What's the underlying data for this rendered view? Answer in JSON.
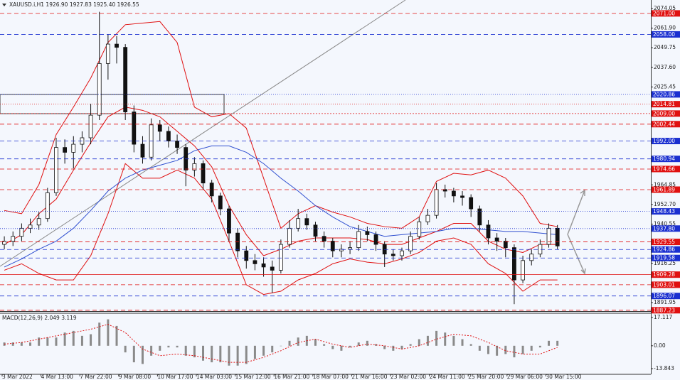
{
  "header": {
    "symbol": "XAUUSD.i,H1 1926.90 1927.83 1925.40 1926.55"
  },
  "chart_data": [
    {
      "type": "candlestick",
      "ylim": [
        1886.7,
        2079.3
      ],
      "yticks": [
        2074.05,
        {
          "value": 2061.9,
          "label": "2061.90"
        },
        2049.75,
        {
          "value": 2037.6,
          "label": "2037.60"
        },
        2025.45,
        1964.85,
        {
          "value": 1952.7,
          "label": "1952.70"
        },
        1940.55,
        1916.25,
        1891.95
      ],
      "ohlc": [
        [
          1928,
          1933,
          1925,
          1930
        ],
        [
          1930,
          1936,
          1927,
          1933
        ],
        [
          1933,
          1941,
          1930,
          1938
        ],
        [
          1938,
          1944,
          1935,
          1940
        ],
        [
          1940,
          1948,
          1937,
          1944
        ],
        [
          1944,
          1963,
          1942,
          1960
        ],
        [
          1960,
          1994,
          1958,
          1988
        ],
        [
          1988,
          1993,
          1978,
          1985
        ],
        [
          1985,
          1995,
          1975,
          1990
        ],
        [
          1990,
          1998,
          1985,
          1994
        ],
        [
          1994,
          2015,
          1990,
          2008
        ],
        [
          2008,
          2072,
          2005,
          2040
        ],
        [
          2040,
          2058,
          2030,
          2052
        ],
        [
          2052,
          2057,
          2040,
          2050
        ],
        [
          2050,
          2052,
          2005,
          2010
        ],
        [
          2010,
          2014,
          1985,
          1990
        ],
        [
          1990,
          1995,
          1978,
          1982
        ],
        [
          1982,
          2006,
          1980,
          2002
        ],
        [
          2002,
          2005,
          1992,
          1998
        ],
        [
          1998,
          2001,
          1988,
          1992
        ],
        [
          1992,
          1996,
          1984,
          1988
        ],
        [
          1988,
          1990,
          1964,
          1974
        ],
        [
          1974,
          1982,
          1970,
          1978
        ],
        [
          1978,
          1980,
          1962,
          1966
        ],
        [
          1966,
          1968,
          1954,
          1958
        ],
        [
          1958,
          1960,
          1946,
          1950
        ],
        [
          1950,
          1952,
          1930,
          1935
        ],
        [
          1935,
          1938,
          1920,
          1924
        ],
        [
          1924,
          1927,
          1913,
          1918
        ],
        [
          1918,
          1922,
          1912,
          1916
        ],
        [
          1916,
          1920,
          1908,
          1914
        ],
        [
          1914,
          1918,
          1898,
          1912
        ],
        [
          1912,
          1931,
          1910,
          1928
        ],
        [
          1928,
          1943,
          1926,
          1938
        ],
        [
          1938,
          1950,
          1936,
          1944
        ],
        [
          1944,
          1947,
          1937,
          1940
        ],
        [
          1940,
          1942,
          1930,
          1933
        ],
        [
          1933,
          1936,
          1926,
          1930
        ],
        [
          1930,
          1932,
          1920,
          1924
        ],
        [
          1924,
          1928,
          1920,
          1925
        ],
        [
          1925,
          1930,
          1922,
          1926
        ],
        [
          1926,
          1940,
          1924,
          1936
        ],
        [
          1936,
          1939,
          1930,
          1934
        ],
        [
          1934,
          1936,
          1924,
          1928
        ],
        [
          1928,
          1930,
          1914,
          1922
        ],
        [
          1922,
          1925,
          1918,
          1921
        ],
        [
          1921,
          1926,
          1918,
          1924
        ],
        [
          1924,
          1936,
          1922,
          1933
        ],
        [
          1933,
          1945,
          1931,
          1942
        ],
        [
          1942,
          1950,
          1940,
          1946
        ],
        [
          1946,
          1966,
          1944,
          1962
        ],
        [
          1962,
          1965,
          1957,
          1961
        ],
        [
          1961,
          1963,
          1954,
          1958
        ],
        [
          1958,
          1961,
          1952,
          1957
        ],
        [
          1957,
          1959,
          1945,
          1950
        ],
        [
          1950,
          1952,
          1936,
          1940
        ],
        [
          1940,
          1943,
          1928,
          1932
        ],
        [
          1932,
          1935,
          1924,
          1930
        ],
        [
          1930,
          1932,
          1920,
          1926
        ],
        [
          1926,
          1928,
          1891,
          1906
        ],
        [
          1906,
          1921,
          1904,
          1918
        ],
        [
          1918,
          1925,
          1915,
          1922
        ],
        [
          1922,
          1931,
          1920,
          1928
        ],
        [
          1928,
          1941,
          1926,
          1938
        ],
        [
          1938,
          1940,
          1925,
          1927
        ]
      ],
      "line_x": [
        0,
        2,
        4,
        6,
        8,
        10,
        12,
        14,
        16,
        18,
        20,
        22,
        24,
        26,
        28,
        30,
        32,
        34,
        36,
        38,
        40,
        42,
        44,
        46,
        48,
        50,
        52,
        54,
        56,
        58,
        60,
        62,
        64
      ],
      "lines": [
        {
          "color": "#e01010",
          "values": [
            1949,
            1947,
            1965,
            1996,
            2013,
            2031,
            2053,
            2064,
            2065,
            2066,
            2053,
            2013,
            2007,
            2009,
            2000,
            1969,
            1938,
            1947,
            1952,
            1948,
            1945,
            1941,
            1939,
            1938,
            1945,
            1967,
            1972,
            1971,
            1974,
            1969,
            1958,
            1941,
            1939
          ]
        },
        {
          "color": "#e01010",
          "values": [
            1912,
            1916,
            1910,
            1906,
            1906,
            1921,
            1947,
            1978,
            1969,
            1969,
            1974,
            1969,
            1956,
            1930,
            1903,
            1897,
            1899,
            1906,
            1910,
            1916,
            1919,
            1917,
            1916,
            1919,
            1923,
            1930,
            1932,
            1928,
            1916,
            1910,
            1899,
            1906,
            1906
          ]
        },
        {
          "color": "#e01010",
          "values": [
            1928,
            1934,
            1947,
            1956,
            1974,
            1991,
            2007,
            2013,
            2011,
            2007,
            1998,
            1989,
            1976,
            1952,
            1934,
            1921,
            1925,
            1930,
            1932,
            1932,
            1932,
            1931,
            1928,
            1928,
            1932,
            1936,
            1941,
            1941,
            1930,
            1925,
            1923,
            1928,
            1928
          ]
        },
        {
          "color": "#3050d0",
          "values": [
            1914,
            1919,
            1925,
            1930,
            1938,
            1949,
            1961,
            1969,
            1974,
            1977,
            1980,
            1986,
            1989,
            1989,
            1985,
            1978,
            1969,
            1961,
            1952,
            1945,
            1939,
            1936,
            1933,
            1934,
            1935,
            1936,
            1938,
            1938,
            1937,
            1936,
            1936,
            1935,
            1934
          ]
        }
      ],
      "levels": [
        {
          "value": 2071,
          "label": "2071.00",
          "color": "#e01010",
          "dash": "6,4"
        },
        {
          "value": 2058,
          "label": "2058.00",
          "color": "#1a2fd0",
          "dash": "6,4"
        },
        {
          "value": 2020.86,
          "label": "2020.86",
          "color": "#1a2fd0",
          "dash": "1,2"
        },
        {
          "value": 2014.81,
          "label": "2014.81",
          "color": "#e01010",
          "dash": "1,2"
        },
        {
          "value": 2009,
          "label": "2009.00",
          "color": "#e01010",
          "dash": "2,2"
        },
        {
          "value": 2002.44,
          "label": "2002.44",
          "color": "#e01010",
          "dash": "6,4"
        },
        {
          "value": 1992,
          "label": "1992.00",
          "color": "#1a2fd0",
          "dash": "6,4"
        },
        {
          "value": 1980.94,
          "label": "1980.94",
          "color": "#1a2fd0",
          "dash": "6,4"
        },
        {
          "value": 1974.66,
          "label": "1974.66",
          "color": "#e01010",
          "dash": "6,4"
        },
        {
          "value": 1961.89,
          "label": "1961.89",
          "color": "#e01010",
          "dash": "6,4"
        },
        {
          "value": 1948.43,
          "label": "1948.43",
          "color": "#1a2fd0",
          "dash": "1,2"
        },
        {
          "value": 1937.8,
          "label": "1937.80",
          "color": "#1a2fd0",
          "dash": "1,2"
        },
        {
          "value": 1929.55,
          "label": "1929.55",
          "color": "#e01010",
          "dash": "6,4"
        },
        {
          "value": 1924.86,
          "label": "1924.86",
          "color": "#1a2fd0",
          "dash": "6,4"
        },
        {
          "value": 1919.58,
          "label": "1919.58",
          "color": "#1a2fd0",
          "dash": "6,4"
        },
        {
          "value": 1909.28,
          "label": "1909.28",
          "color": "#e01010",
          "dash": "none"
        },
        {
          "value": 1903.01,
          "label": "1903.01",
          "color": "#e01010",
          "dash": "6,4"
        },
        {
          "value": 1896.07,
          "label": "1896.07",
          "color": "#1a2fd0",
          "dash": "6,4"
        },
        {
          "value": 1887.23,
          "label": "1887.23",
          "color": "#e01010",
          "dash": "6,4"
        }
      ]
    },
    {
      "type": "bar",
      "title": "MACD(12,26,9) 2.049 3.119",
      "ylim": [
        -17.27,
        19.26
      ],
      "yticks": [
        17.117,
        {
          "value": 0,
          "label": "0.00"
        },
        -13.843
      ],
      "color": "#8a8a8a",
      "values": [
        2,
        2,
        2,
        2,
        5,
        5,
        5,
        8,
        9,
        6,
        7,
        14,
        16,
        12,
        -4,
        -10,
        -11,
        -6,
        -3,
        -1,
        -1,
        -6,
        -7,
        -9,
        -10,
        -10,
        -12,
        -12,
        -11,
        -8,
        -6,
        -4,
        0,
        3,
        5,
        6,
        4,
        1,
        -2,
        -3,
        -1,
        2,
        3,
        1,
        -2,
        -3,
        -2,
        1,
        4,
        6,
        9,
        8,
        6,
        4,
        1,
        -3,
        -5,
        -6,
        -5,
        -7,
        -5,
        -3,
        -1,
        3,
        3
      ],
      "signal": {
        "color": "#e01010",
        "values": [
          1,
          2,
          4,
          6,
          8,
          10,
          13,
          8,
          -2,
          -6,
          -5,
          -6,
          -8,
          -10,
          -10,
          -7,
          -3,
          2,
          4,
          1,
          -1,
          1,
          0,
          -2,
          0,
          4,
          7,
          6,
          2,
          -3,
          -5,
          -5,
          -1
        ]
      },
      "x_labels": [
        "3 Mar 2022",
        "4 Mar 13:00",
        "7 Mar 22:00",
        "9 Mar 08:00",
        "10 Mar 17:00",
        "14 Mar 03:00",
        "15 Mar 12:00",
        "16 Mar 21:00",
        "18 Mar 07:00",
        "21 Mar 16:00",
        "23 Mar 02:00",
        "24 Mar 11:00",
        "25 Mar 20:00",
        "29 Mar 06:00",
        "30 Mar 15:00"
      ]
    }
  ]
}
